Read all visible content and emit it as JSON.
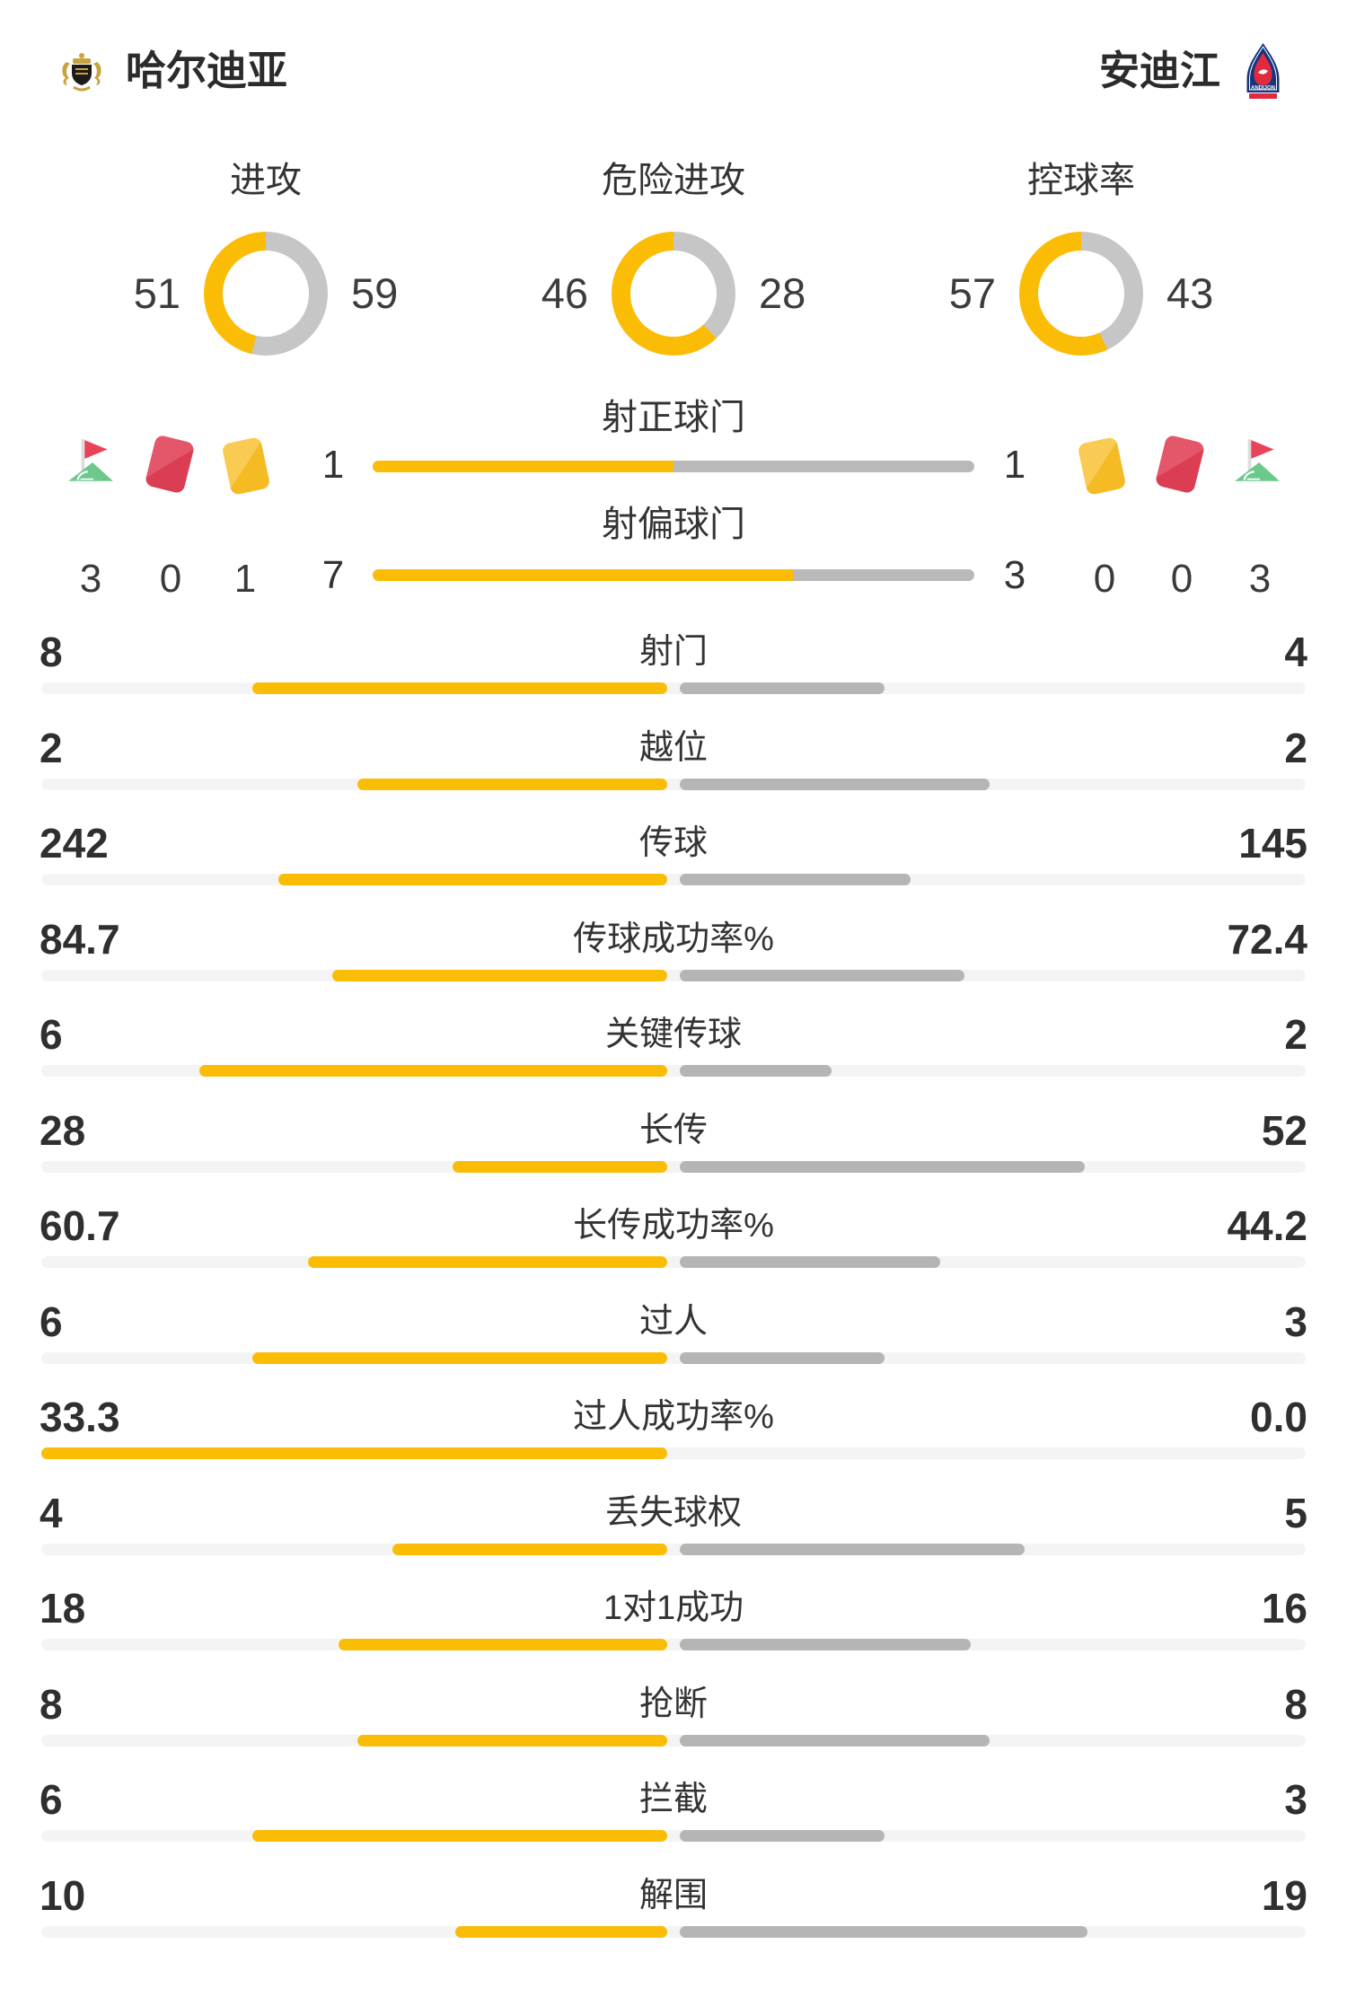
{
  "header": {
    "home": {
      "name": "哈尔迪亚"
    },
    "away": {
      "name": "安迪江",
      "logo_text": "ANDIJON"
    }
  },
  "colors": {
    "accent_yellow": "#FBBC05",
    "bar_gray": "#B5B5B5",
    "shot_bar_gray": "#B9B9B9",
    "track_gray": "#F4F4F5",
    "donut_gray": "#C6C6C6",
    "card_red": "#E04A5E",
    "card_yellow": "#F7C03A",
    "flag_red": "#E8435A",
    "flag_green": "#6CC98B",
    "text_dark": "#2F2F2F"
  },
  "chart_data": {
    "type": "composite",
    "teams": [
      "哈尔迪亚",
      "安迪江"
    ],
    "donuts": [
      {
        "type": "pie",
        "label": "进攻",
        "home": "51",
        "away": "59"
      },
      {
        "type": "pie",
        "label": "危险进攻",
        "home": "46",
        "away": "28"
      },
      {
        "type": "pie",
        "label": "控球率",
        "home": "57",
        "away": "43"
      }
    ],
    "discipline": {
      "icons": [
        "corner-flag",
        "red-card",
        "yellow-card"
      ],
      "home": {
        "corners": "3",
        "reds": "0",
        "yellows": "1"
      },
      "away": {
        "corners": "3",
        "reds": "0",
        "yellows": "0"
      }
    },
    "shot_bars": [
      {
        "label": "射正球门",
        "home": "1",
        "away": "1"
      },
      {
        "label": "射偏球门",
        "home": "7",
        "away": "3"
      }
    ],
    "stats": [
      {
        "label": "射门",
        "home": "8",
        "away": "4"
      },
      {
        "label": "越位",
        "home": "2",
        "away": "2"
      },
      {
        "label": "传球",
        "home": "242",
        "away": "145"
      },
      {
        "label": "传球成功率%",
        "home": "84.7",
        "away": "72.4"
      },
      {
        "label": "关键传球",
        "home": "6",
        "away": "2"
      },
      {
        "label": "长传",
        "home": "28",
        "away": "52"
      },
      {
        "label": "长传成功率%",
        "home": "60.7",
        "away": "44.2"
      },
      {
        "label": "过人",
        "home": "6",
        "away": "3"
      },
      {
        "label": "过人成功率%",
        "home": "33.3",
        "away": "0.0"
      },
      {
        "label": "丢失球权",
        "home": "4",
        "away": "5"
      },
      {
        "label": "1对1成功",
        "home": "18",
        "away": "16"
      },
      {
        "label": "抢断",
        "home": "8",
        "away": "8"
      },
      {
        "label": "拦截",
        "home": "6",
        "away": "3"
      },
      {
        "label": "解围",
        "home": "10",
        "away": "19"
      }
    ]
  }
}
